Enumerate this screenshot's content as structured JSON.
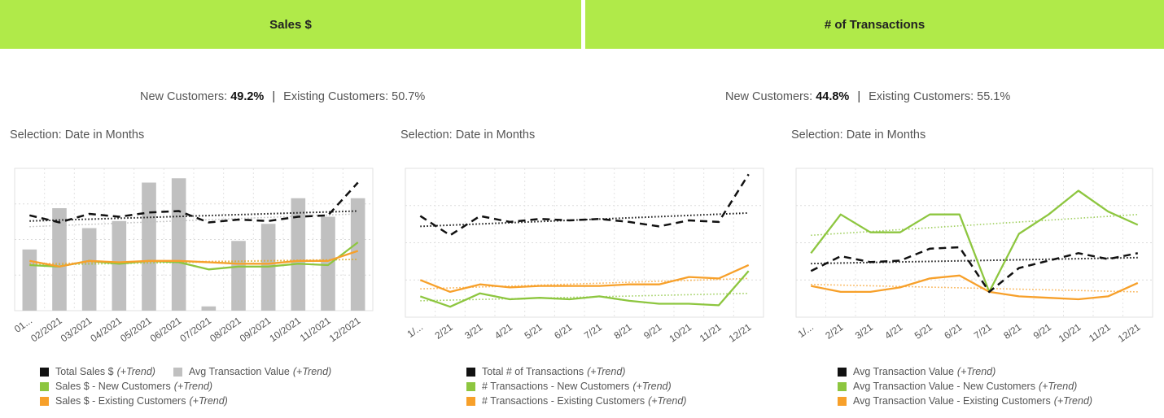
{
  "headers": {
    "sales": "Sales $",
    "transactions": "# of Transactions"
  },
  "summaries": [
    {
      "new_label": "New Customers:",
      "new_value": "49.2%",
      "sep": "|",
      "existing_label": "Existing Customers:",
      "existing_value": "50.7%"
    },
    {
      "new_label": "New Customers:",
      "new_value": "44.8%",
      "sep": "|",
      "existing_label": "Existing Customers:",
      "existing_value": "55.1%"
    }
  ],
  "colors": {
    "header_bg": "#b0ea49",
    "total": "#111111",
    "new": "#8dc63f",
    "existing": "#f7a02a",
    "bar": "#c0c0c0"
  },
  "chart_data": [
    {
      "type": "bar+line",
      "title": "Selection: Date in Months",
      "categories": [
        "01...",
        "02/2021",
        "03/2021",
        "04/2021",
        "05/2021",
        "06/2021",
        "07/2021",
        "08/2021",
        "09/2021",
        "10/2021",
        "11/2021",
        "12/2021"
      ],
      "ylim": [
        0,
        100
      ],
      "bars": {
        "name": "Avg Transaction Value",
        "values": [
          43,
          72,
          58,
          63,
          90,
          93,
          3,
          49,
          61,
          79,
          66,
          79
        ]
      },
      "series": [
        {
          "name": "Total Sales $",
          "key": "total",
          "values": [
            67,
            62,
            68,
            66,
            69,
            70,
            62,
            64,
            63,
            66,
            67,
            90
          ],
          "trend": [
            63,
            70
          ]
        },
        {
          "name": "Sales $ - New Customers",
          "key": "new",
          "values": [
            32,
            31,
            35,
            33,
            35,
            34,
            29,
            31,
            31,
            33,
            32,
            48
          ],
          "trend": [
            32,
            36
          ]
        },
        {
          "name": "Sales $ - Existing Customers",
          "key": "existing",
          "values": [
            35,
            31,
            35,
            34,
            35,
            35,
            34,
            33,
            33,
            35,
            35,
            42
          ],
          "trend": [
            33,
            36
          ]
        }
      ],
      "bar_trend": [
        59,
        68
      ],
      "legend": [
        {
          "key": "total",
          "label": "Total Sales $",
          "suffix": "(+Trend)"
        },
        {
          "key": "bar",
          "label": "Avg Transaction Value",
          "suffix": "(+Trend)"
        },
        {
          "key": "new",
          "label": "Sales $ - New Customers",
          "suffix": "(+Trend)"
        },
        {
          "key": "existing",
          "label": "Sales $ - Existing Customers",
          "suffix": "(+Trend)"
        }
      ]
    },
    {
      "type": "line",
      "title": "Selection: Date in Months",
      "categories": [
        "1/...",
        "2/21",
        "3/21",
        "4/21",
        "5/21",
        "6/21",
        "7/21",
        "8/21",
        "9/21",
        "10/21",
        "11/21",
        "12/21"
      ],
      "ylim": [
        0,
        100
      ],
      "series": [
        {
          "name": "Total # of Transactions",
          "key": "total",
          "values": [
            68,
            55,
            68,
            64,
            66,
            65,
            66,
            64,
            61,
            65,
            64,
            96
          ],
          "trend": [
            61,
            70
          ]
        },
        {
          "name": "# Transactions - New Customers",
          "key": "new",
          "values": [
            14,
            7,
            16,
            12,
            13,
            12,
            14,
            11,
            9,
            9,
            8,
            31
          ],
          "trend": [
            11,
            16
          ]
        },
        {
          "name": "# Transactions - Existing Customers",
          "key": "existing",
          "values": [
            25,
            17,
            22,
            20,
            21,
            21,
            21,
            22,
            22,
            27,
            26,
            35
          ],
          "trend": [
            19,
            26
          ]
        }
      ],
      "legend": [
        {
          "key": "total",
          "label": "Total # of Transactions",
          "suffix": "(+Trend)"
        },
        {
          "key": "new",
          "label": "# Transactions - New Customers",
          "suffix": "(+Trend)"
        },
        {
          "key": "existing",
          "label": "# Transactions - Existing Customers",
          "suffix": "(+Trend)"
        }
      ]
    },
    {
      "type": "line",
      "title": "Selection: Date in Months",
      "categories": [
        "1/...",
        "2/21",
        "3/21",
        "4/21",
        "5/21",
        "6/21",
        "7/21",
        "8/21",
        "9/21",
        "10/21",
        "11/21",
        "12/21"
      ],
      "ylim": [
        0,
        100
      ],
      "series": [
        {
          "name": "Avg Transaction Value",
          "key": "total",
          "values": [
            31,
            41,
            37,
            38,
            46,
            47,
            17,
            33,
            38,
            43,
            39,
            43
          ],
          "trend": [
            36,
            40
          ]
        },
        {
          "name": "Avg Transaction Value - New Customers",
          "key": "new",
          "values": [
            43,
            69,
            57,
            57,
            69,
            69,
            17,
            56,
            69,
            85,
            71,
            62
          ],
          "trend": [
            55,
            69
          ]
        },
        {
          "name": "Avg Transaction Value - Existing Customers",
          "key": "existing",
          "values": [
            21,
            17,
            17,
            20,
            26,
            28,
            17,
            14,
            13,
            12,
            14,
            23
          ],
          "trend": [
            22,
            17
          ]
        }
      ],
      "legend": [
        {
          "key": "total",
          "label": "Avg Transaction Value",
          "suffix": "(+Trend)"
        },
        {
          "key": "new",
          "label": "Avg Transaction Value - New Customers",
          "suffix": "(+Trend)"
        },
        {
          "key": "existing",
          "label": "Avg Transaction Value - Existing Customers",
          "suffix": "(+Trend)"
        }
      ]
    }
  ]
}
